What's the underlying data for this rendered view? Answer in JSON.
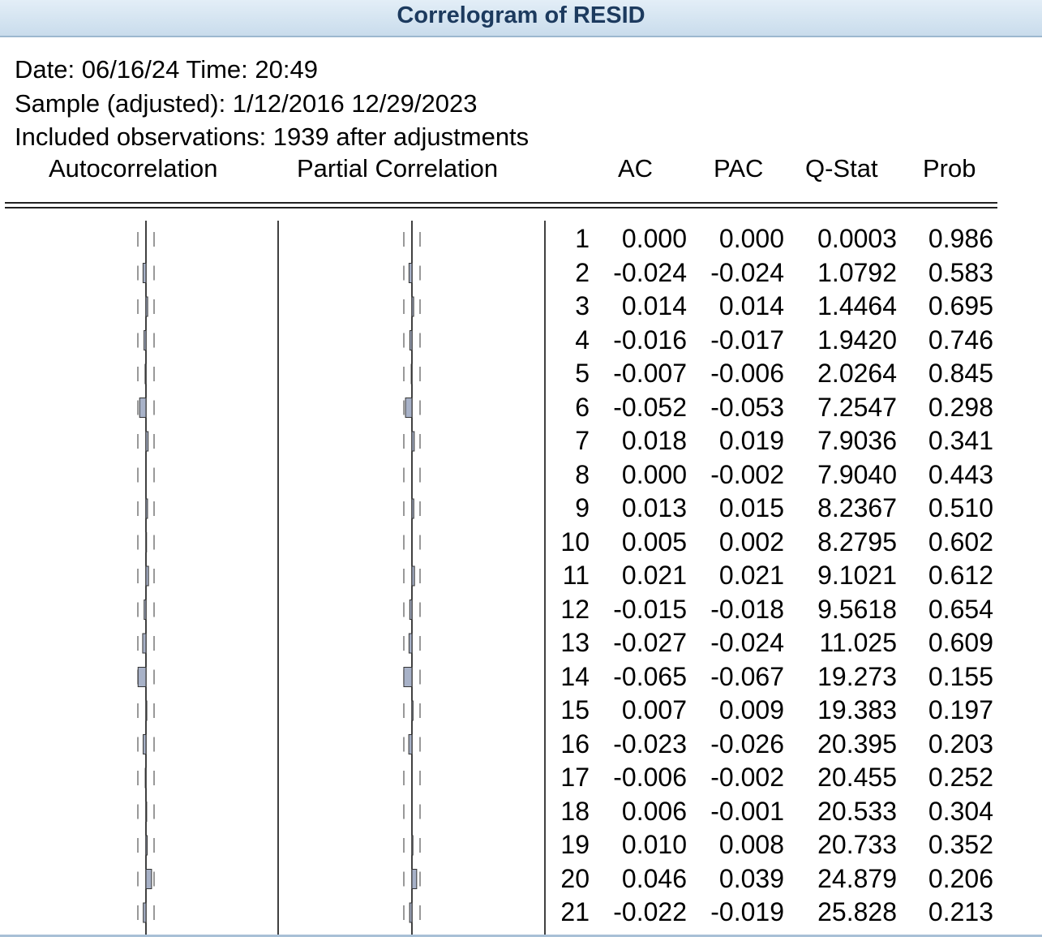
{
  "window": {
    "title": "Correlogram of RESID"
  },
  "info": {
    "date_line": "Date: 06/16/24   Time: 20:49",
    "sample_line": "Sample (adjusted): 1/12/2016 12/29/2023",
    "obs_line": "Included observations: 1939 after adjustments"
  },
  "headers": {
    "autocorrelation": "Autocorrelation",
    "partial_correlation": "Partial Correlation",
    "ac": "AC",
    "pac": "PAC",
    "qstat": "Q-Stat",
    "prob": "Prob"
  },
  "colors": {
    "bar_fill": "#a8b2c8",
    "title_text": "#1c3a5e"
  },
  "rows": [
    {
      "lag": "1",
      "ac": "0.000",
      "pac": "0.000",
      "q": "0.0003",
      "prob": "0.986"
    },
    {
      "lag": "2",
      "ac": "-0.024",
      "pac": "-0.024",
      "q": "1.0792",
      "prob": "0.583"
    },
    {
      "lag": "3",
      "ac": "0.014",
      "pac": "0.014",
      "q": "1.4464",
      "prob": "0.695"
    },
    {
      "lag": "4",
      "ac": "-0.016",
      "pac": "-0.017",
      "q": "1.9420",
      "prob": "0.746"
    },
    {
      "lag": "5",
      "ac": "-0.007",
      "pac": "-0.006",
      "q": "2.0264",
      "prob": "0.845"
    },
    {
      "lag": "6",
      "ac": "-0.052",
      "pac": "-0.053",
      "q": "7.2547",
      "prob": "0.298"
    },
    {
      "lag": "7",
      "ac": "0.018",
      "pac": "0.019",
      "q": "7.9036",
      "prob": "0.341"
    },
    {
      "lag": "8",
      "ac": "0.000",
      "pac": "-0.002",
      "q": "7.9040",
      "prob": "0.443"
    },
    {
      "lag": "9",
      "ac": "0.013",
      "pac": "0.015",
      "q": "8.2367",
      "prob": "0.510"
    },
    {
      "lag": "10",
      "ac": "0.005",
      "pac": "0.002",
      "q": "8.2795",
      "prob": "0.602"
    },
    {
      "lag": "11",
      "ac": "0.021",
      "pac": "0.021",
      "q": "9.1021",
      "prob": "0.612"
    },
    {
      "lag": "12",
      "ac": "-0.015",
      "pac": "-0.018",
      "q": "9.5618",
      "prob": "0.654"
    },
    {
      "lag": "13",
      "ac": "-0.027",
      "pac": "-0.024",
      "q": "11.025",
      "prob": "0.609"
    },
    {
      "lag": "14",
      "ac": "-0.065",
      "pac": "-0.067",
      "q": "19.273",
      "prob": "0.155"
    },
    {
      "lag": "15",
      "ac": "0.007",
      "pac": "0.009",
      "q": "19.383",
      "prob": "0.197"
    },
    {
      "lag": "16",
      "ac": "-0.023",
      "pac": "-0.026",
      "q": "20.395",
      "prob": "0.203"
    },
    {
      "lag": "17",
      "ac": "-0.006",
      "pac": "-0.002",
      "q": "20.455",
      "prob": "0.252"
    },
    {
      "lag": "18",
      "ac": "0.006",
      "pac": "-0.001",
      "q": "20.533",
      "prob": "0.304"
    },
    {
      "lag": "19",
      "ac": "0.010",
      "pac": "0.008",
      "q": "20.733",
      "prob": "0.352"
    },
    {
      "lag": "20",
      "ac": "0.046",
      "pac": "0.039",
      "q": "24.879",
      "prob": "0.206"
    },
    {
      "lag": "21",
      "ac": "-0.022",
      "pac": "-0.019",
      "q": "25.828",
      "prob": "0.213"
    }
  ]
}
